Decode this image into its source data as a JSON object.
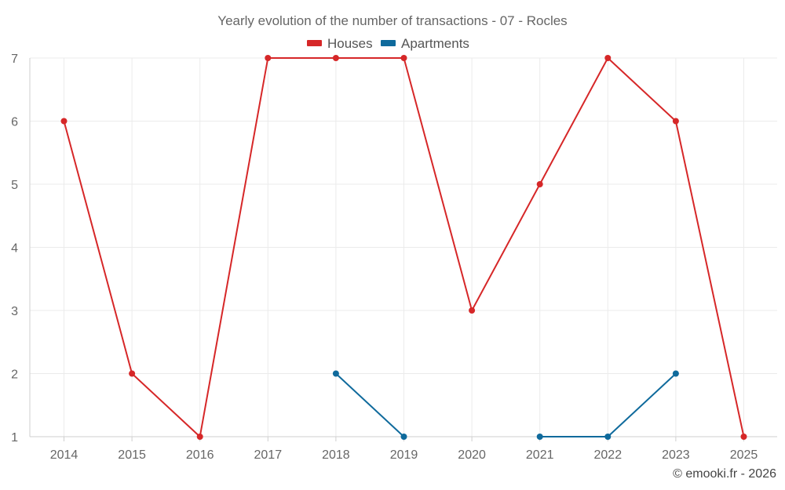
{
  "chart_data": {
    "type": "line",
    "title": "Yearly evolution of the number of transactions - 07 - Rocles",
    "categories": [
      "2014",
      "2015",
      "2016",
      "2017",
      "2018",
      "2019",
      "2020",
      "2021",
      "2022",
      "2023",
      "2025"
    ],
    "series": [
      {
        "name": "Houses",
        "color": "#d62728",
        "values": [
          6,
          2,
          1,
          7,
          7,
          7,
          3,
          5,
          7,
          6,
          1
        ]
      },
      {
        "name": "Apartments",
        "color": "#0f6a9c",
        "values": [
          null,
          null,
          null,
          null,
          2,
          1,
          null,
          1,
          1,
          2,
          null
        ]
      }
    ],
    "yticks": [
      1,
      2,
      3,
      4,
      5,
      6,
      7
    ],
    "ylim": [
      1,
      7
    ],
    "grid": true,
    "legend_position": "top-center",
    "xlabel": "",
    "ylabel": ""
  },
  "credit": "© emooki.fr - 2026"
}
